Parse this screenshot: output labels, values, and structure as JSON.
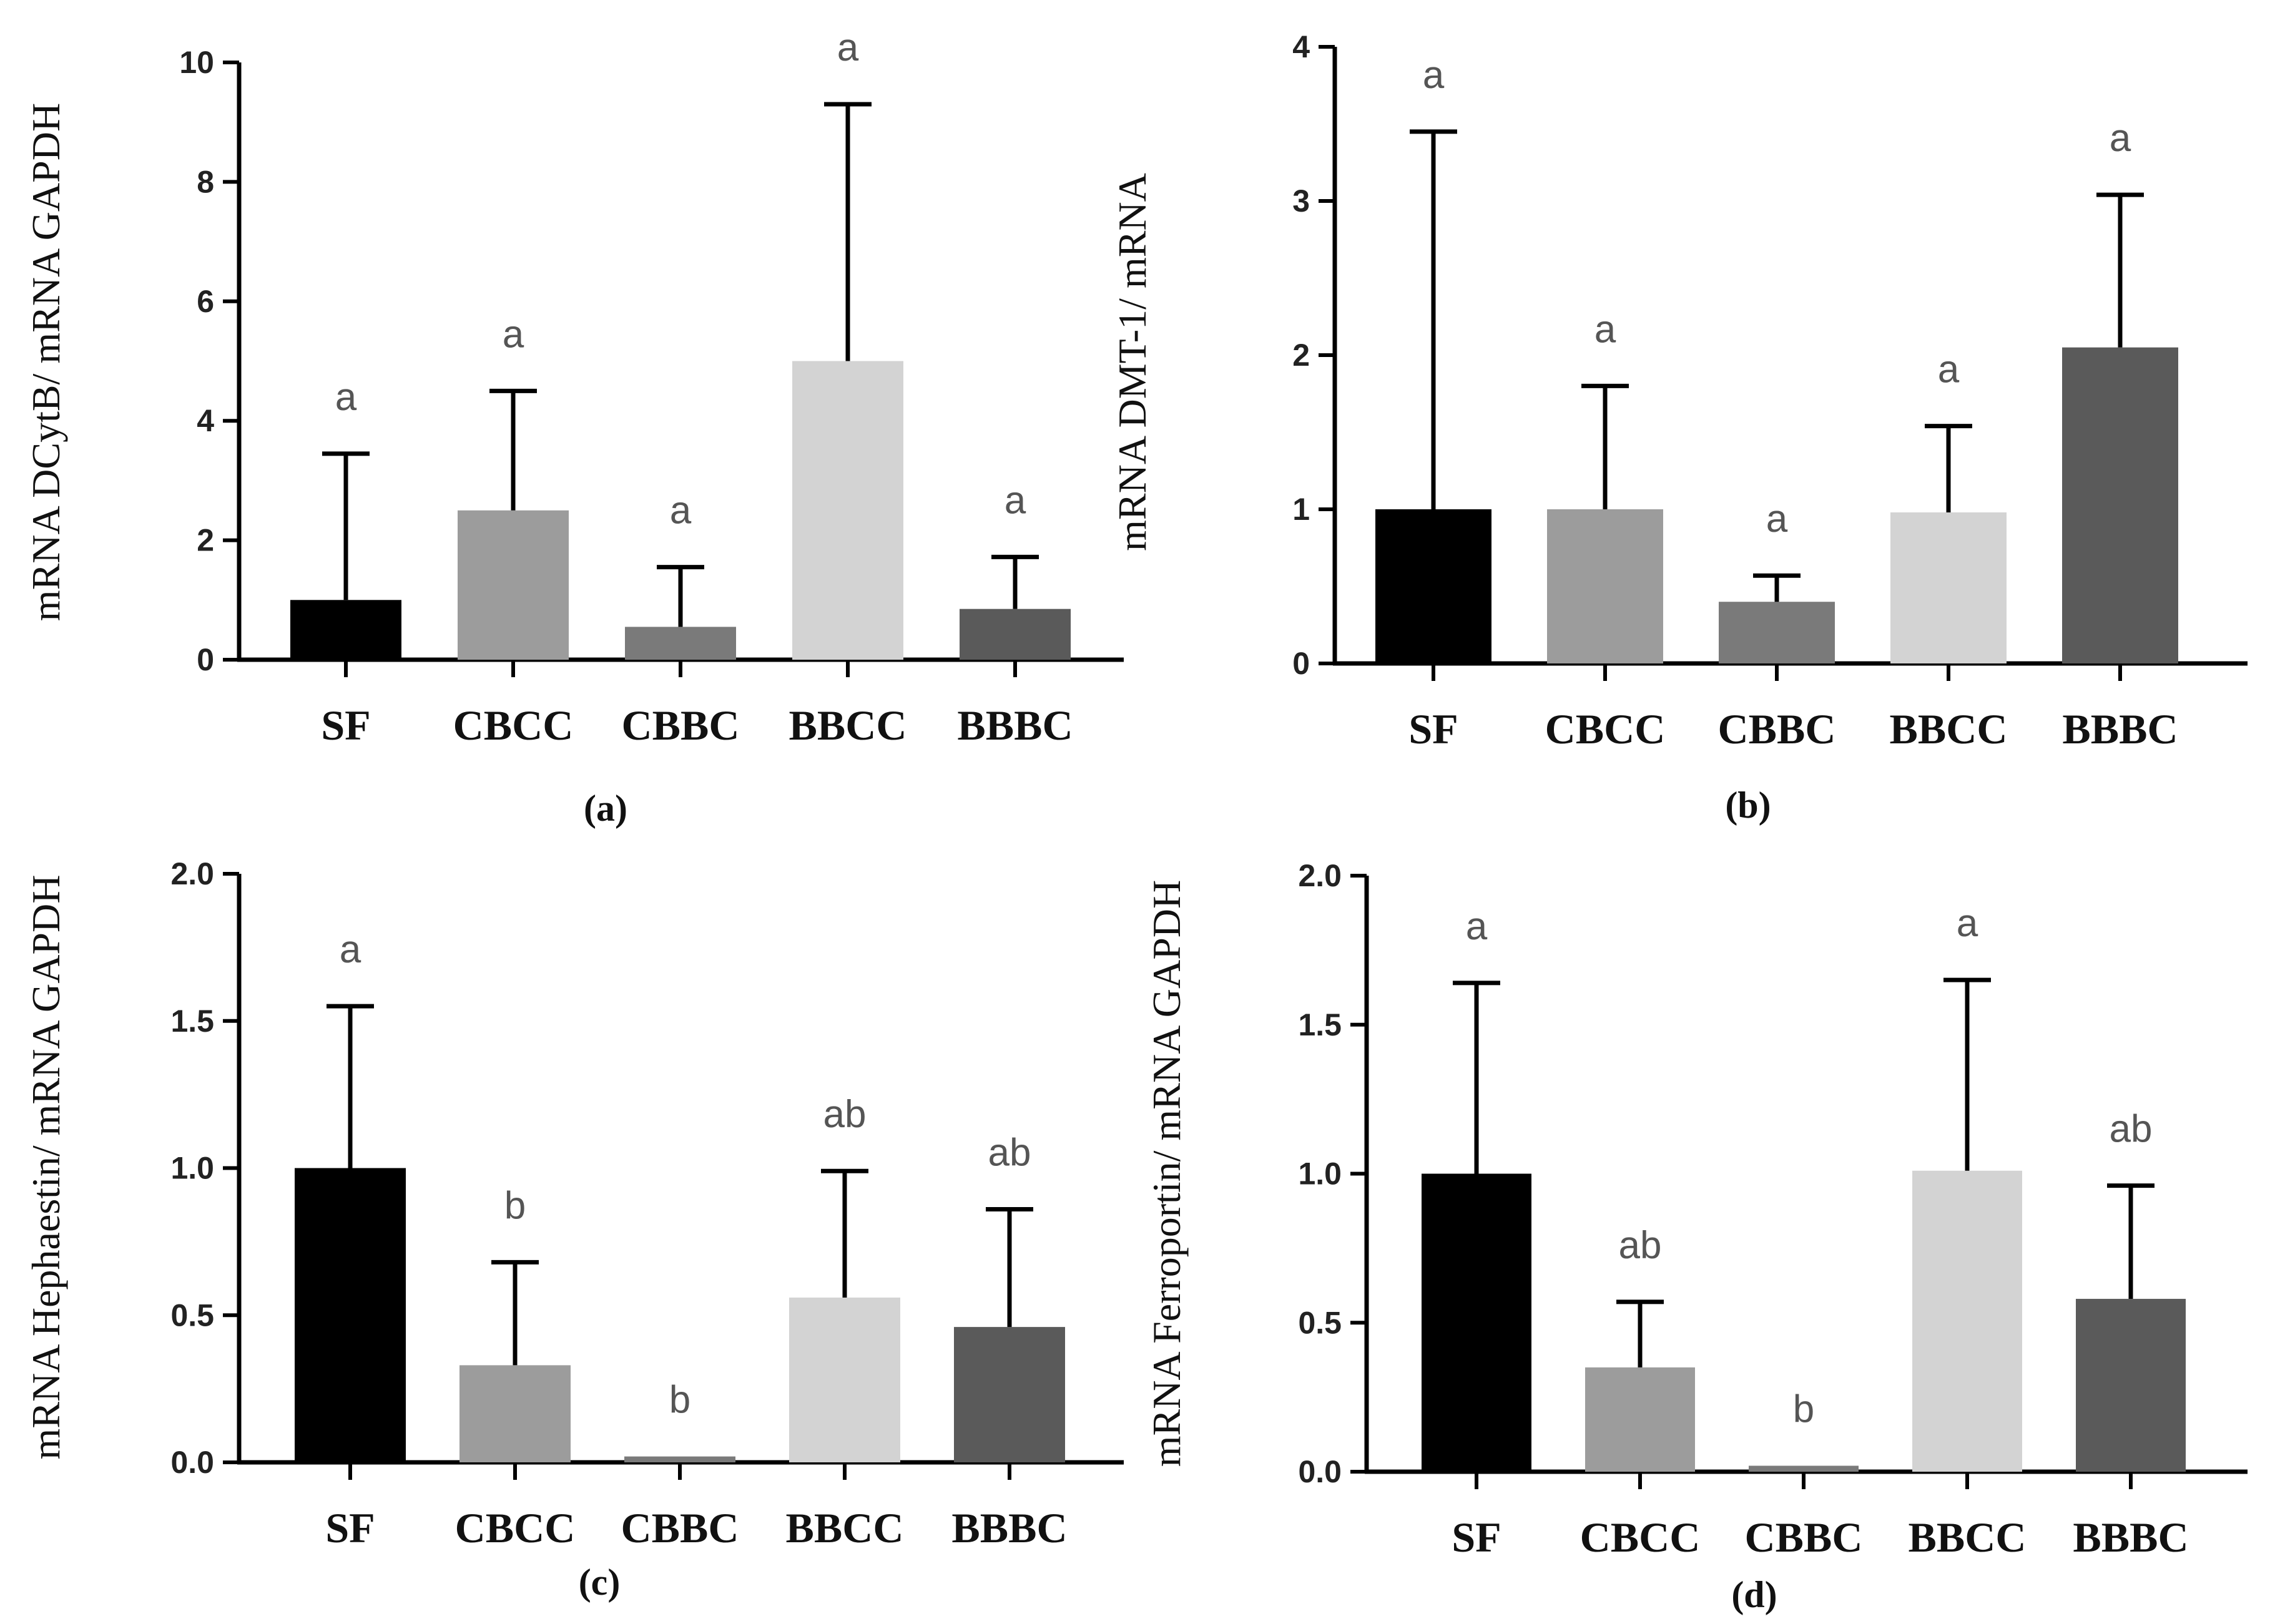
{
  "chart_data": [
    {
      "type": "bar",
      "panel": "a",
      "caption": "(a)",
      "ylabel": "mRNA DCytB/ mRNA GAPDH",
      "categories": [
        "SF",
        "CBCC",
        "CBBC",
        "BBCC",
        "BBBC"
      ],
      "values": [
        1.0,
        2.5,
        0.55,
        5.0,
        0.85
      ],
      "errors": [
        2.45,
        2.0,
        1.0,
        4.3,
        0.87
      ],
      "significance": [
        "a",
        "a",
        "a",
        "a",
        "a"
      ],
      "ylim": [
        0,
        10
      ],
      "yticks": [
        0,
        2,
        4,
        6,
        8,
        10
      ],
      "ytick_labels": [
        "0",
        "2",
        "4",
        "6",
        "8",
        "10"
      ],
      "colors": [
        "#000000",
        "#9c9c9c",
        "#7a7a7a",
        "#d3d3d3",
        "#5a5a5a"
      ]
    },
    {
      "type": "bar",
      "panel": "b",
      "caption": "(b)",
      "ylabel": "mRNA DMT-1/ mRNA",
      "categories": [
        "SF",
        "CBCC",
        "CBBC",
        "BBCC",
        "BBBC"
      ],
      "values": [
        1.0,
        1.0,
        0.4,
        0.98,
        2.05
      ],
      "errors": [
        2.45,
        0.8,
        0.17,
        0.56,
        0.99
      ],
      "significance": [
        "a",
        "a",
        "a",
        "a",
        "a"
      ],
      "ylim": [
        0,
        4
      ],
      "yticks": [
        0,
        1,
        2,
        3,
        4
      ],
      "ytick_labels": [
        "0",
        "1",
        "2",
        "3",
        "4"
      ],
      "colors": [
        "#000000",
        "#9c9c9c",
        "#7a7a7a",
        "#d3d3d3",
        "#5a5a5a"
      ]
    },
    {
      "type": "bar",
      "panel": "c",
      "caption": "(c)",
      "ylabel": "mRNA Hephaestin/ mRNA GAPDH",
      "categories": [
        "SF",
        "CBCC",
        "CBBC",
        "BBCC",
        "BBBC"
      ],
      "values": [
        1.0,
        0.33,
        0.02,
        0.56,
        0.46
      ],
      "errors": [
        0.55,
        0.35,
        0.0,
        0.43,
        0.4
      ],
      "significance": [
        "a",
        "b",
        "b",
        "ab",
        "ab"
      ],
      "ylim": [
        0,
        2.0
      ],
      "yticks": [
        0,
        0.5,
        1.0,
        1.5,
        2.0
      ],
      "ytick_labels": [
        "0.0",
        "0.5",
        "1.0",
        "1.5",
        "2.0"
      ],
      "colors": [
        "#000000",
        "#9c9c9c",
        "#7a7a7a",
        "#d3d3d3",
        "#5a5a5a"
      ]
    },
    {
      "type": "bar",
      "panel": "d",
      "caption": "(d)",
      "ylabel": "mRNA Ferroportin/ mRNA GAPDH",
      "categories": [
        "SF",
        "CBCC",
        "CBBC",
        "BBCC",
        "BBBC"
      ],
      "values": [
        1.0,
        0.35,
        0.02,
        1.01,
        0.58
      ],
      "errors": [
        0.64,
        0.22,
        0.0,
        0.64,
        0.38
      ],
      "significance": [
        "a",
        "ab",
        "b",
        "a",
        "ab"
      ],
      "ylim": [
        0,
        2.0
      ],
      "yticks": [
        0,
        0.5,
        1.0,
        1.5,
        2.0
      ],
      "ytick_labels": [
        "0.0",
        "0.5",
        "1.0",
        "1.5",
        "2.0"
      ],
      "colors": [
        "#000000",
        "#9c9c9c",
        "#7a7a7a",
        "#d3d3d3",
        "#5a5a5a"
      ]
    }
  ]
}
